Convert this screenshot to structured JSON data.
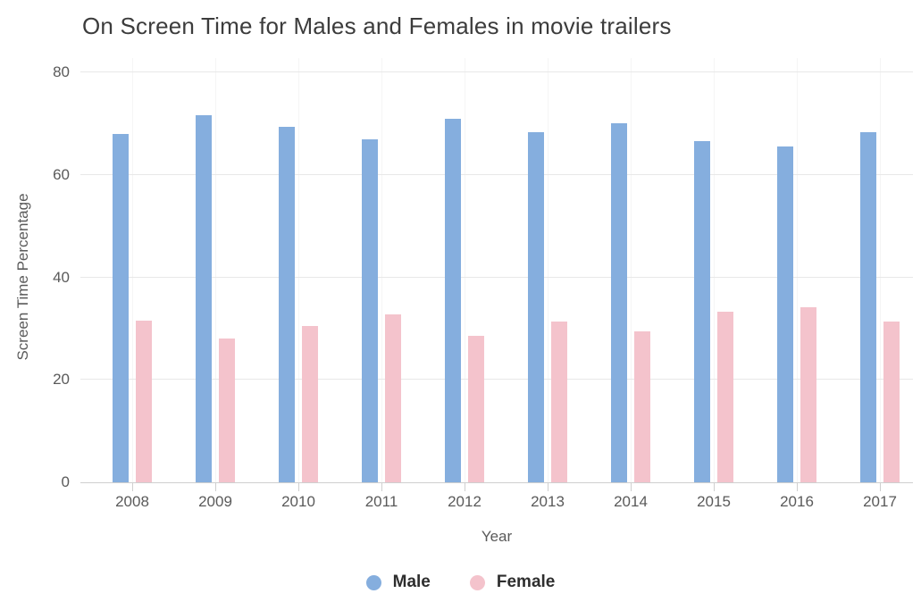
{
  "chart_data": {
    "type": "bar",
    "title": "On Screen Time for Males and Females in movie trailers",
    "xlabel": "Year",
    "ylabel": "Screen Time Percentage",
    "categories": [
      "2008",
      "2009",
      "2010",
      "2011",
      "2012",
      "2013",
      "2014",
      "2015",
      "2016",
      "2017"
    ],
    "series": [
      {
        "name": "Male",
        "color": "#85aede",
        "values": [
          68.0,
          71.7,
          69.3,
          66.9,
          71.0,
          68.3,
          70.0,
          66.5,
          65.6,
          68.4
        ]
      },
      {
        "name": "Female",
        "color": "#f4c3cc",
        "values": [
          31.6,
          28.0,
          30.5,
          32.7,
          28.6,
          31.3,
          29.5,
          33.3,
          34.1,
          31.3
        ]
      }
    ],
    "ylim": [
      0,
      80
    ],
    "yticks": [
      0,
      20,
      40,
      60,
      80
    ],
    "grid": true,
    "legend_position": "bottom"
  }
}
